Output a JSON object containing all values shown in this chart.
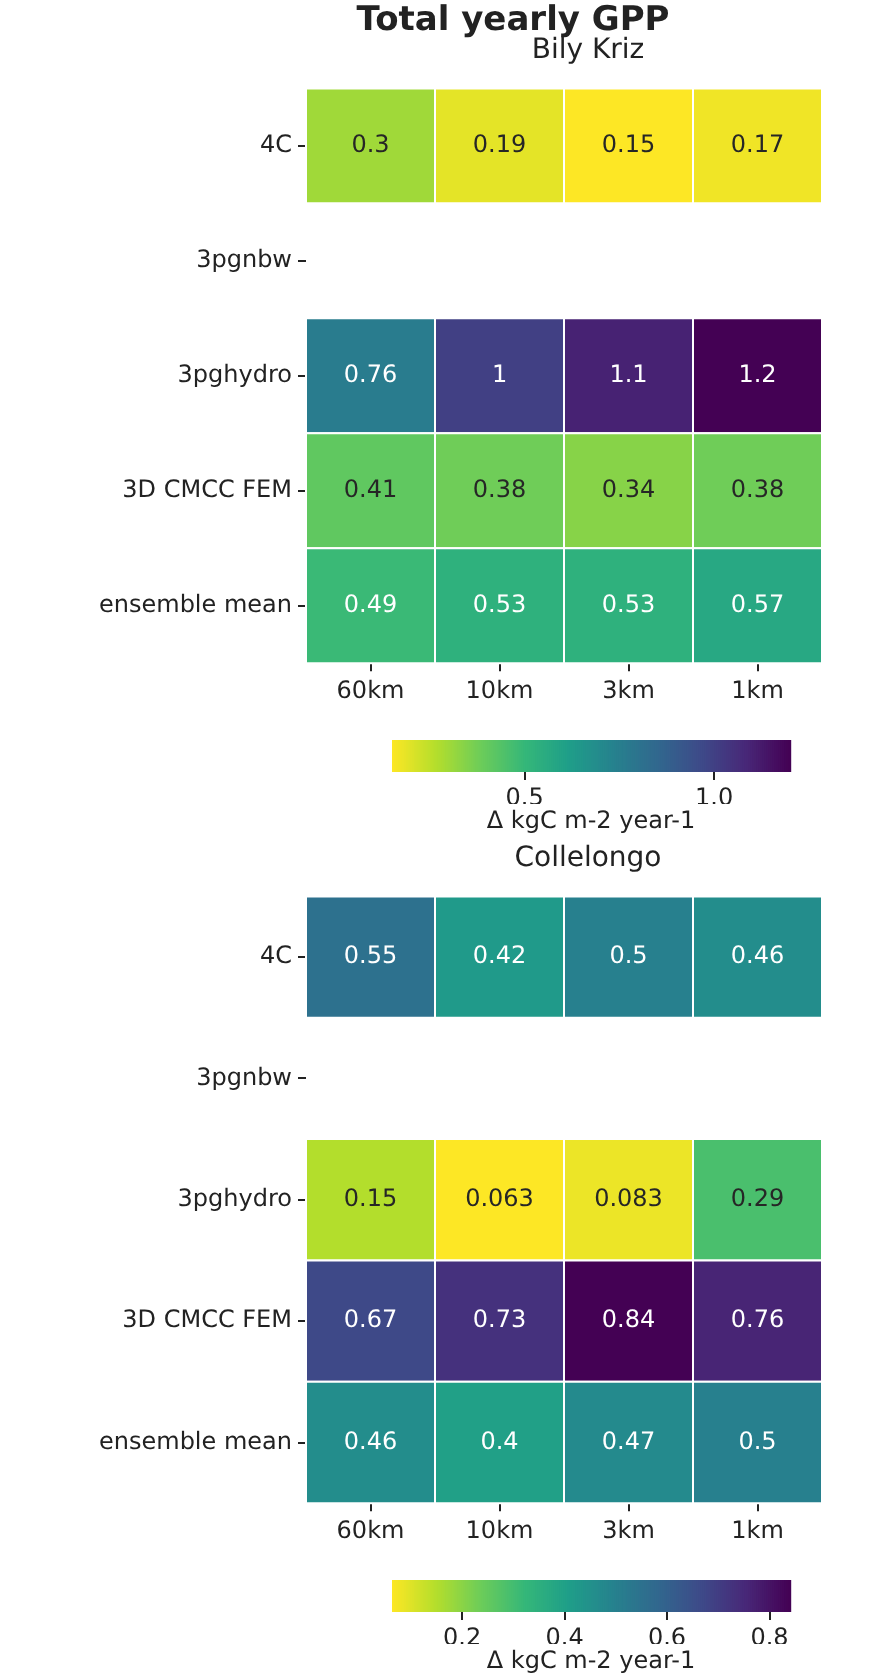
{
  "chart_data": [
    {
      "type": "heatmap",
      "title": "Total yearly GPP",
      "subtitle": "Bily Kriz",
      "categories": [
        "60km",
        "10km",
        "3km",
        "1km"
      ],
      "y_categories": [
        "4C",
        "3pgnbw",
        "3pghydro",
        "3D CMCC FEM",
        "ensemble mean"
      ],
      "cells": [
        [
          0.3,
          0.19,
          0.15,
          0.17
        ],
        [
          null,
          null,
          null,
          null
        ],
        [
          0.76,
          1,
          1.1,
          1.2
        ],
        [
          0.41,
          0.38,
          0.34,
          0.38
        ],
        [
          0.49,
          0.53,
          0.53,
          0.57
        ]
      ],
      "data_labels": true,
      "clim": [
        0.15,
        1.2
      ],
      "cticks": [
        0.5,
        {
          "value": 1,
          "label": "1.0"
        }
      ],
      "clabel": "Δ kgC m-2 year-1"
    },
    {
      "type": "heatmap",
      "subtitle": "Collelongo",
      "categories": [
        "60km",
        "10km",
        "3km",
        "1km"
      ],
      "y_categories": [
        "4C",
        "3pgnbw",
        "3pghydro",
        "3D CMCC FEM",
        "ensemble mean"
      ],
      "cells": [
        [
          0.55,
          0.42,
          0.5,
          0.46
        ],
        [
          null,
          null,
          null,
          null
        ],
        [
          0.15,
          0.063,
          0.083,
          0.29
        ],
        [
          0.67,
          0.73,
          0.84,
          0.76
        ],
        [
          0.46,
          0.4,
          0.47,
          0.5
        ]
      ],
      "data_labels": true,
      "clim": [
        0.063,
        0.84
      ],
      "cticks": [
        0.2,
        0.4,
        0.6,
        0.8
      ],
      "clabel": "Δ kgC m-2 year-1"
    }
  ]
}
